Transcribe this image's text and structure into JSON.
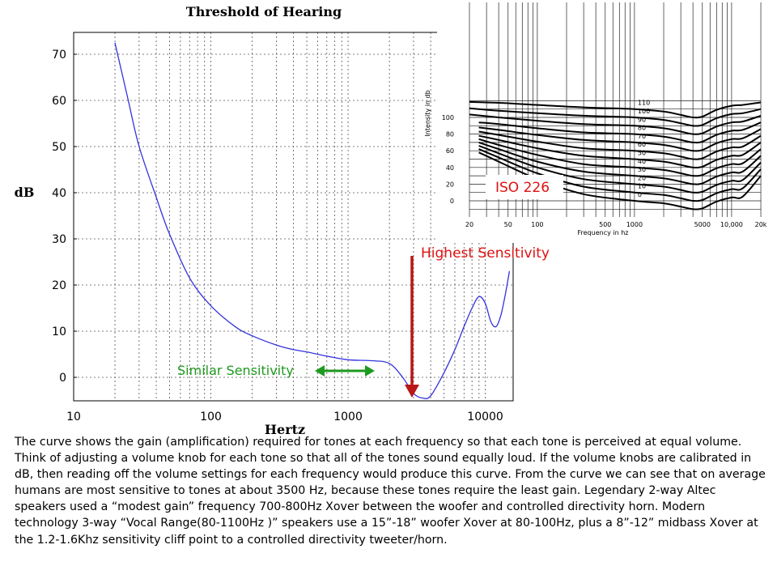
{
  "chart_data": [
    {
      "type": "line",
      "title": "Threshold of Hearing",
      "xlabel": "Hertz",
      "ylabel": "dB",
      "xscale": "log",
      "xlim": [
        10,
        16000
      ],
      "ylim": [
        -5,
        75
      ],
      "xticks": [
        "10",
        "100",
        "1000",
        "10000"
      ],
      "yticks": [
        "0",
        "10",
        "20",
        "30",
        "40",
        "50",
        "60",
        "70"
      ],
      "grid": true,
      "series": [
        {
          "color": "#3333dd",
          "x": [
            20,
            25,
            30,
            40,
            50,
            70,
            100,
            150,
            200,
            300,
            400,
            500,
            700,
            1000,
            1500,
            2000,
            2500,
            3000,
            3500,
            4000,
            5000,
            6000,
            7000,
            8000,
            9000,
            10000,
            11000,
            12000,
            13000,
            14000,
            15000
          ],
          "y": [
            72.5,
            60,
            50,
            39,
            31,
            21.5,
            15.5,
            11,
            9,
            7,
            6,
            5.5,
            4.6,
            3.8,
            3.6,
            3,
            0,
            -3.5,
            -4.5,
            -4,
            1,
            6,
            11,
            15,
            17.5,
            16,
            12,
            11,
            13.5,
            18,
            23
          ]
        }
      ],
      "annotations": [
        {
          "text": "Similar Sensitivity",
          "color": "#1e9a1e"
        },
        {
          "text": "Highest Sensitivity",
          "color": "#dd1111"
        }
      ]
    },
    {
      "type": "line",
      "title": "",
      "label": "ISO 226",
      "xlabel": "Frequency in hz",
      "ylabel": "Intensity in db",
      "xscale": "log",
      "xlim": [
        15,
        22000
      ],
      "ylim": [
        -10,
        125
      ],
      "xticks": [
        "20",
        "50",
        "100",
        "500",
        "1000",
        "5000",
        "10,000",
        "20k"
      ],
      "yticks": [
        "0",
        "20",
        "40",
        "60",
        "80",
        "100"
      ],
      "grid": true,
      "series": [
        {
          "name": "110",
          "x": [
            20,
            40,
            100,
            300,
            1000,
            2000,
            3000,
            4000,
            5000,
            7000,
            10000,
            13000,
            20000
          ],
          "y": [
            118.5,
            117.5,
            115,
            112,
            110,
            107,
            103,
            100,
            101,
            109,
            114,
            115,
            118
          ]
        },
        {
          "name": "100",
          "x": [
            20,
            40,
            100,
            300,
            1000,
            2000,
            3000,
            4000,
            5000,
            7000,
            10000,
            13000,
            20000
          ],
          "y": [
            111,
            108,
            105,
            102,
            100,
            97,
            93,
            90,
            91,
            99,
            104,
            105,
            110
          ]
        },
        {
          "name": "90",
          "x": [
            20,
            40,
            100,
            300,
            1000,
            2000,
            3000,
            4000,
            5000,
            7000,
            10000,
            13000,
            20000
          ],
          "y": [
            103.5,
            100,
            96,
            92,
            90,
            87,
            83,
            80,
            81,
            89,
            94,
            95,
            102
          ]
        },
        {
          "name": "80",
          "x": [
            25,
            40,
            100,
            300,
            1000,
            2000,
            3000,
            4000,
            5000,
            7000,
            10000,
            13000,
            20000
          ],
          "y": [
            94,
            92,
            87,
            82,
            80,
            77,
            73,
            70,
            71,
            79,
            84,
            85,
            94
          ]
        },
        {
          "name": "70",
          "x": [
            25,
            40,
            100,
            300,
            1000,
            2000,
            3000,
            4000,
            5000,
            7000,
            10000,
            13000,
            20000
          ],
          "y": [
            88,
            85,
            79,
            73,
            70,
            67,
            63,
            60,
            61,
            69,
            74,
            75,
            86
          ]
        },
        {
          "name": "60",
          "x": [
            25,
            40,
            100,
            300,
            1000,
            2000,
            3000,
            4000,
            5000,
            7000,
            10000,
            13000,
            20000
          ],
          "y": [
            83,
            79,
            71,
            63,
            60,
            57,
            53,
            50,
            51,
            59,
            64,
            65,
            78
          ]
        },
        {
          "name": "50",
          "x": [
            25,
            40,
            100,
            300,
            1000,
            2000,
            3000,
            4000,
            5000,
            7000,
            10000,
            13000,
            20000
          ],
          "y": [
            78,
            73,
            63,
            54,
            50,
            47,
            43,
            40,
            41,
            49,
            54,
            55,
            70
          ]
        },
        {
          "name": "40",
          "x": [
            25,
            40,
            100,
            300,
            1000,
            2000,
            3000,
            4000,
            5000,
            7000,
            10000,
            13000,
            20000
          ],
          "y": [
            74,
            67,
            55,
            44,
            40,
            37,
            33,
            30,
            31,
            39,
            44,
            45,
            62
          ]
        },
        {
          "name": "30",
          "x": [
            25,
            40,
            100,
            300,
            1000,
            2000,
            3000,
            4000,
            5000,
            7000,
            10000,
            13000,
            20000
          ],
          "y": [
            70,
            62,
            47,
            35,
            30,
            27,
            23,
            20,
            21,
            29,
            34,
            35,
            54
          ]
        },
        {
          "name": "20",
          "x": [
            25,
            40,
            100,
            300,
            1000,
            2000,
            3000,
            4000,
            5000,
            7000,
            10000,
            13000,
            20000
          ],
          "y": [
            66,
            57,
            40,
            26,
            20,
            17,
            13,
            10,
            11,
            19,
            24,
            25,
            46
          ]
        },
        {
          "name": "10",
          "x": [
            25,
            40,
            100,
            300,
            1000,
            2000,
            3000,
            4000,
            5000,
            7000,
            10000,
            13000,
            20000
          ],
          "y": [
            62,
            52,
            33,
            17,
            10,
            7,
            3,
            0,
            1,
            9,
            14,
            15,
            38
          ]
        },
        {
          "name": "0",
          "x": [
            25,
            40,
            100,
            300,
            1000,
            2000,
            3000,
            4000,
            5000,
            7000,
            10000,
            13000,
            20000
          ],
          "y": [
            58,
            47,
            26,
            8,
            0,
            -3,
            -7,
            -10,
            -9,
            -1,
            4,
            5,
            30
          ]
        }
      ]
    }
  ],
  "caption": "The curve shows the gain (amplification) required for tones at each frequency so that each tone is perceived at equal volume. Think of adjusting a volume knob for each tone so that all of the tones sound equally loud. If the volume knobs are calibrated in dB, then reading off the volume settings for each frequency would produce this curve. From the curve we can see that on average humans are most sensitive to tones at about 3500 Hz, because these tones require the least gain.  Legendary 2-way Altec speakers used a “modest gain” frequency  700-800Hz Xover between the woofer and controlled directivity horn.  Modern technology 3-way “Vocal Range(80-1100Hz )” speakers use a 15”-18” woofer Xover at 80-100Hz,  plus a 8”-12” midbass Xover at the 1.2-1.6Khz sensitivity cliff point to a controlled directivity tweeter/horn."
}
